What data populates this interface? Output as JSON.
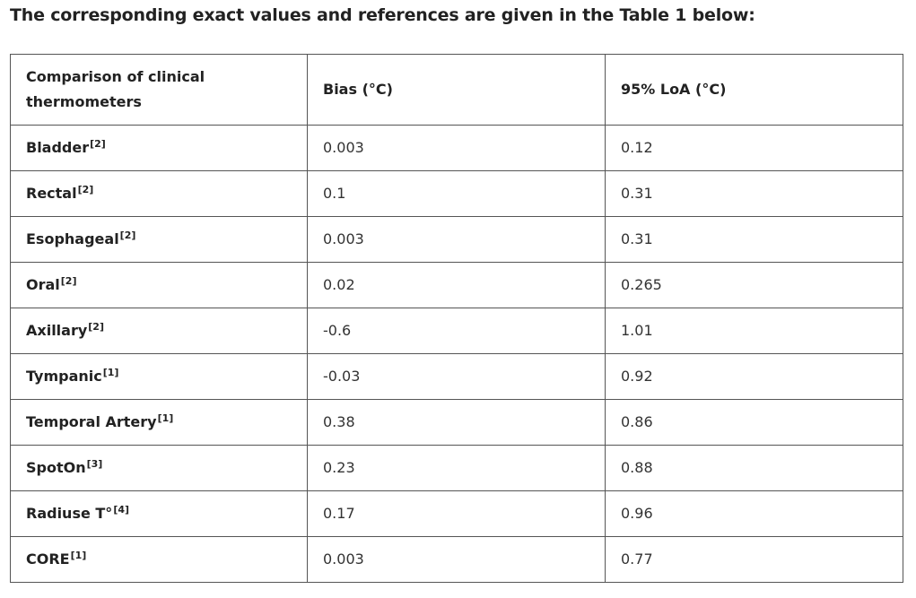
{
  "intro_text": "The corresponding exact values and references are given in the Table 1 below:",
  "table": {
    "headers": {
      "col1": "Comparison of clinical thermometers",
      "col2": "Bias (°C)",
      "col3": "95% LoA (°C)"
    },
    "rows": [
      {
        "name": "Bladder",
        "ref": "[2]",
        "bias": "0.003",
        "loa": "0.12"
      },
      {
        "name": "Rectal",
        "ref": "[2]",
        "bias": "0.1",
        "loa": "0.31"
      },
      {
        "name": "Esophageal",
        "ref": "[2]",
        "bias": "0.003",
        "loa": "0.31"
      },
      {
        "name": "Oral",
        "ref": "[2]",
        "bias": "0.02",
        "loa": "0.265"
      },
      {
        "name": "Axillary",
        "ref": "[2]",
        "bias": "-0.6",
        "loa": "1.01"
      },
      {
        "name": "Tympanic",
        "ref": "[1]",
        "bias": "-0.03",
        "loa": "0.92"
      },
      {
        "name": "Temporal Artery",
        "ref": "[1]",
        "bias": "0.38",
        "loa": "0.86"
      },
      {
        "name": "SpotOn",
        "ref": "[3]",
        "bias": "0.23",
        "loa": "0.88"
      },
      {
        "name": "Radiuse T°",
        "ref": "[4]",
        "bias": "0.17",
        "loa": "0.96"
      },
      {
        "name": "CORE",
        "ref": "[1]",
        "bias": "0.003",
        "loa": "0.77"
      }
    ]
  }
}
